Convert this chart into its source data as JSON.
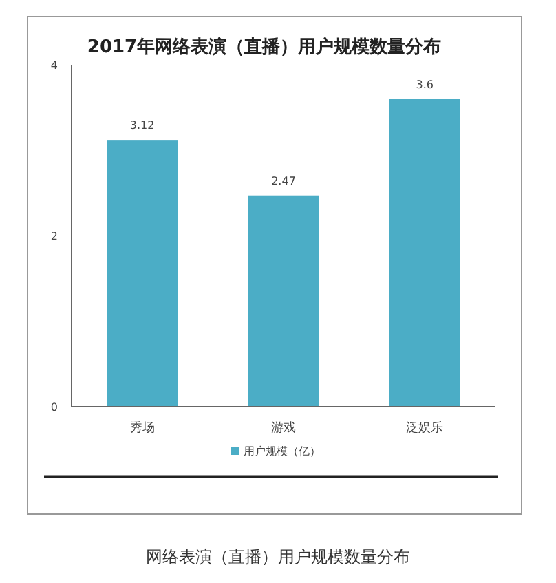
{
  "chart_data": {
    "type": "bar",
    "title": "2017年网络表演（直播）用户规模数量分布",
    "categories": [
      "秀场",
      "游戏",
      "泛娱乐"
    ],
    "series": [
      {
        "name": "用户规模（亿）",
        "color": "#4badc6",
        "values": [
          3.12,
          2.47,
          3.6
        ]
      }
    ],
    "ylim": [
      0,
      4
    ],
    "yticks": [
      0,
      2,
      4
    ],
    "grid": false,
    "legend": "bottom",
    "data_labels": true,
    "annotations": [
      "网络表演（直播）用户规模数量分布"
    ]
  }
}
